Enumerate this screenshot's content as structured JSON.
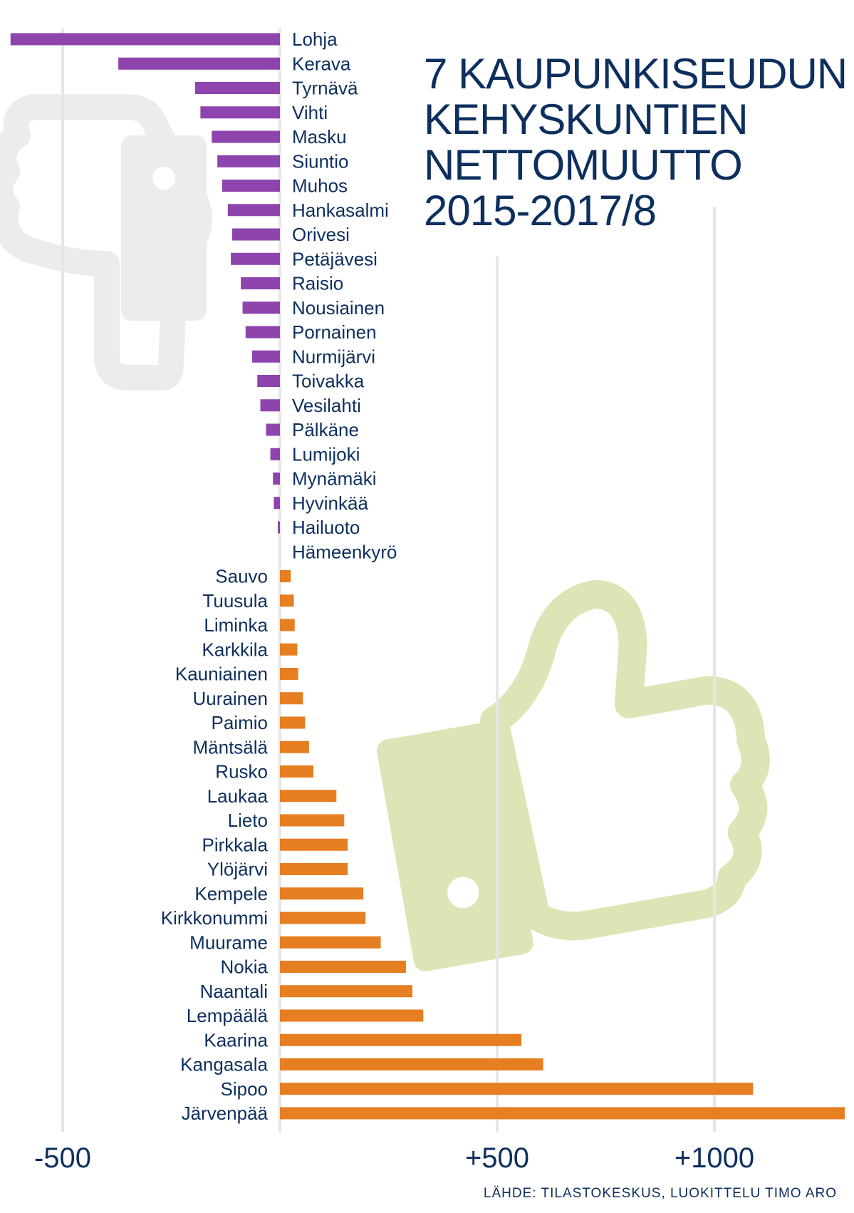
{
  "title_lines": [
    "7 KAUPUNKISEUDUN",
    "KEHYSKUNTIEN",
    "NETTOMUUTTO",
    "2015-2017/8"
  ],
  "source": "LÄHDE: TILASTOKESKUS, LUOKITTELU TIMO ARO",
  "colors": {
    "negative": "#8e44ad",
    "positive": "#e67e22",
    "text": "#0d2f5e",
    "grid": "#e6e6e6",
    "thumb_down": "#ececec",
    "thumb_up": "#dde5b6"
  },
  "decorations": {
    "thumb_down_icon": "thumbs-down-icon",
    "thumb_up_icon": "thumbs-up-icon"
  },
  "chart_data": {
    "type": "bar",
    "orientation": "horizontal",
    "xlim": [
      -620,
      1310
    ],
    "x_ticks": [
      -500,
      0,
      500,
      1000
    ],
    "x_tick_labels": [
      "-500",
      "",
      "+500",
      "+1000"
    ],
    "grid": true,
    "categories": [
      "Lohja",
      "Kerava",
      "Tyrnävä",
      "Vihti",
      "Masku",
      "Siuntio",
      "Muhos",
      "Hankasalmi",
      "Orivesi",
      "Petäjävesi",
      "Raisio",
      "Nousiainen",
      "Pornainen",
      "Nurmijärvi",
      "Toivakka",
      "Vesilahti",
      "Pälkäne",
      "Lumijoki",
      "Mynämäki",
      "Hyvinkää",
      "Hailuoto",
      "Hämeenkyrö",
      "Sauvo",
      "Tuusula",
      "Liminka",
      "Karkkila",
      "Kauniainen",
      "Uurainen",
      "Paimio",
      "Mäntsälä",
      "Rusko",
      "Laukaa",
      "Lieto",
      "Pirkkala",
      "Ylöjärvi",
      "Kempele",
      "Kirkkonummi",
      "Muurame",
      "Nokia",
      "Naantali",
      "Lempäälä",
      "Kaarina",
      "Kangasala",
      "Sipoo",
      "Järvenpää"
    ],
    "values": [
      -620,
      -372,
      -195,
      -183,
      -157,
      -144,
      -133,
      -120,
      -110,
      -113,
      -90,
      -86,
      -79,
      -64,
      -52,
      -45,
      -32,
      -22,
      -16,
      -14,
      -5,
      0,
      25,
      32,
      34,
      40,
      42,
      53,
      58,
      67,
      77,
      130,
      148,
      156,
      156,
      192,
      197,
      232,
      290,
      305,
      330,
      556,
      606,
      1089,
      1300
    ]
  }
}
